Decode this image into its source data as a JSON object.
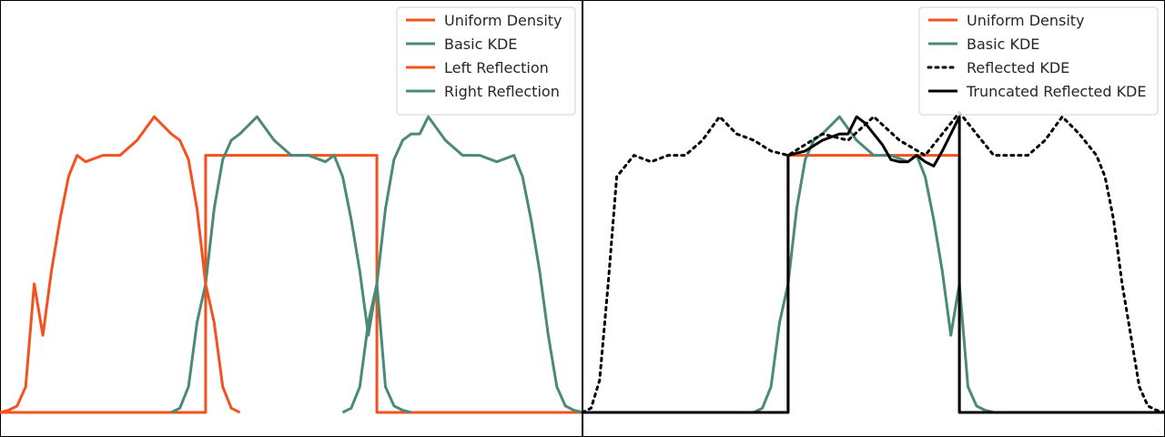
{
  "colors": {
    "uniform": "#f4511e",
    "basic_kde": "#4b8a76",
    "left_reflection": "#f4511e",
    "right_reflection": "#4b8a76",
    "reflected": "#000000",
    "truncated": "#000000"
  },
  "chart_data": [
    {
      "type": "line",
      "title": "",
      "xlim": [
        -1.2,
        2.2
      ],
      "ylim": [
        0,
        1.5
      ],
      "grid": false,
      "legend_position": "top-right",
      "series": [
        {
          "name": "Uniform Density",
          "color_key": "uniform",
          "style": "solid",
          "x": [
            -1.2,
            0,
            0,
            1,
            1,
            2.2
          ],
          "y": [
            0,
            0,
            1.2,
            1.2,
            0,
            0
          ]
        },
        {
          "name": "Basic KDE",
          "color_key": "basic_kde",
          "style": "solid",
          "x": [
            -0.2,
            -0.15,
            -0.1,
            -0.05,
            0,
            0.05,
            0.1,
            0.15,
            0.2,
            0.3,
            0.4,
            0.5,
            0.6,
            0.7,
            0.75,
            0.8,
            0.85,
            0.9,
            0.95,
            1.0,
            1.05,
            1.1,
            1.15,
            1.2
          ],
          "y": [
            0,
            0.02,
            0.12,
            0.42,
            0.6,
            0.95,
            1.18,
            1.27,
            1.3,
            1.38,
            1.27,
            1.2,
            1.2,
            1.17,
            1.2,
            1.1,
            0.9,
            0.66,
            0.36,
            0.6,
            0.12,
            0.03,
            0.01,
            0
          ]
        },
        {
          "name": "Left Reflection",
          "color_key": "left_reflection",
          "style": "solid",
          "x": [
            -1.2,
            -1.15,
            -1.1,
            -1.05,
            -1.0,
            -0.95,
            -0.9,
            -0.85,
            -0.8,
            -0.75,
            -0.7,
            -0.6,
            -0.5,
            -0.4,
            -0.3,
            -0.2,
            -0.15,
            -0.1,
            -0.05,
            0,
            0.05,
            0.1,
            0.15,
            0.2
          ],
          "y": [
            0,
            0.01,
            0.03,
            0.12,
            0.6,
            0.36,
            0.66,
            0.9,
            1.1,
            1.2,
            1.17,
            1.2,
            1.2,
            1.27,
            1.38,
            1.3,
            1.27,
            1.18,
            0.95,
            0.6,
            0.42,
            0.12,
            0.02,
            0
          ]
        },
        {
          "name": "Right Reflection",
          "color_key": "right_reflection",
          "style": "solid",
          "x": [
            0.8,
            0.85,
            0.9,
            0.95,
            1.0,
            1.05,
            1.1,
            1.15,
            1.2,
            1.25,
            1.3,
            1.4,
            1.5,
            1.6,
            1.7,
            1.8,
            1.85,
            1.9,
            1.95,
            2.0,
            2.05,
            2.1,
            2.15,
            2.2
          ],
          "y": [
            0,
            0.02,
            0.12,
            0.42,
            0.6,
            0.95,
            1.18,
            1.27,
            1.3,
            1.3,
            1.38,
            1.27,
            1.2,
            1.2,
            1.17,
            1.2,
            1.1,
            0.9,
            0.66,
            0.36,
            0.12,
            0.03,
            0.01,
            0
          ]
        }
      ]
    },
    {
      "type": "line",
      "title": "",
      "xlim": [
        -1.2,
        2.2
      ],
      "ylim": [
        0,
        1.5
      ],
      "grid": false,
      "legend_position": "top-right",
      "series": [
        {
          "name": "Uniform Density",
          "color_key": "uniform",
          "style": "solid",
          "x": [
            -1.2,
            0,
            0,
            1,
            1,
            2.2
          ],
          "y": [
            0,
            0,
            1.2,
            1.2,
            0,
            0
          ]
        },
        {
          "name": "Basic KDE",
          "color_key": "basic_kde",
          "style": "solid",
          "x": [
            -0.2,
            -0.15,
            -0.1,
            -0.05,
            0,
            0.05,
            0.1,
            0.15,
            0.2,
            0.3,
            0.4,
            0.5,
            0.6,
            0.7,
            0.75,
            0.8,
            0.85,
            0.9,
            0.95,
            1.0,
            1.05,
            1.1,
            1.15,
            1.2
          ],
          "y": [
            0,
            0.02,
            0.12,
            0.42,
            0.6,
            0.95,
            1.18,
            1.27,
            1.3,
            1.38,
            1.27,
            1.2,
            1.2,
            1.17,
            1.2,
            1.1,
            0.9,
            0.66,
            0.36,
            0.6,
            0.12,
            0.03,
            0.01,
            0
          ]
        },
        {
          "name": "Reflected KDE",
          "color_key": "reflected",
          "style": "dotted",
          "x": [
            -1.2,
            -1.15,
            -1.1,
            -1.05,
            -1.0,
            -0.9,
            -0.8,
            -0.7,
            -0.6,
            -0.5,
            -0.4,
            -0.3,
            -0.2,
            -0.1,
            0,
            0.2,
            0.35,
            0.5,
            0.65,
            0.8,
            0.9,
            1.0,
            1.1,
            1.2,
            1.3,
            1.4,
            1.5,
            1.6,
            1.7,
            1.8,
            1.85,
            1.9,
            1.95,
            2.0,
            2.05,
            2.1,
            2.15,
            2.2
          ],
          "y": [
            0,
            0.02,
            0.15,
            0.6,
            1.1,
            1.2,
            1.17,
            1.2,
            1.2,
            1.27,
            1.38,
            1.3,
            1.27,
            1.22,
            1.2,
            1.3,
            1.27,
            1.38,
            1.27,
            1.2,
            1.3,
            1.4,
            1.3,
            1.2,
            1.2,
            1.2,
            1.27,
            1.38,
            1.3,
            1.2,
            1.1,
            0.9,
            0.6,
            0.36,
            0.12,
            0.03,
            0.01,
            0
          ]
        },
        {
          "name": "Truncated Reflected KDE",
          "color_key": "truncated",
          "style": "solid",
          "x": [
            -1.2,
            0,
            0,
            0.1,
            0.2,
            0.3,
            0.35,
            0.4,
            0.45,
            0.5,
            0.55,
            0.6,
            0.65,
            0.7,
            0.75,
            0.8,
            0.85,
            0.9,
            0.95,
            1.0,
            1.0,
            2.2
          ],
          "y": [
            0,
            0,
            1.2,
            1.22,
            1.27,
            1.3,
            1.3,
            1.38,
            1.35,
            1.3,
            1.25,
            1.18,
            1.17,
            1.17,
            1.2,
            1.17,
            1.15,
            1.22,
            1.3,
            1.38,
            0,
            0
          ]
        }
      ]
    }
  ]
}
